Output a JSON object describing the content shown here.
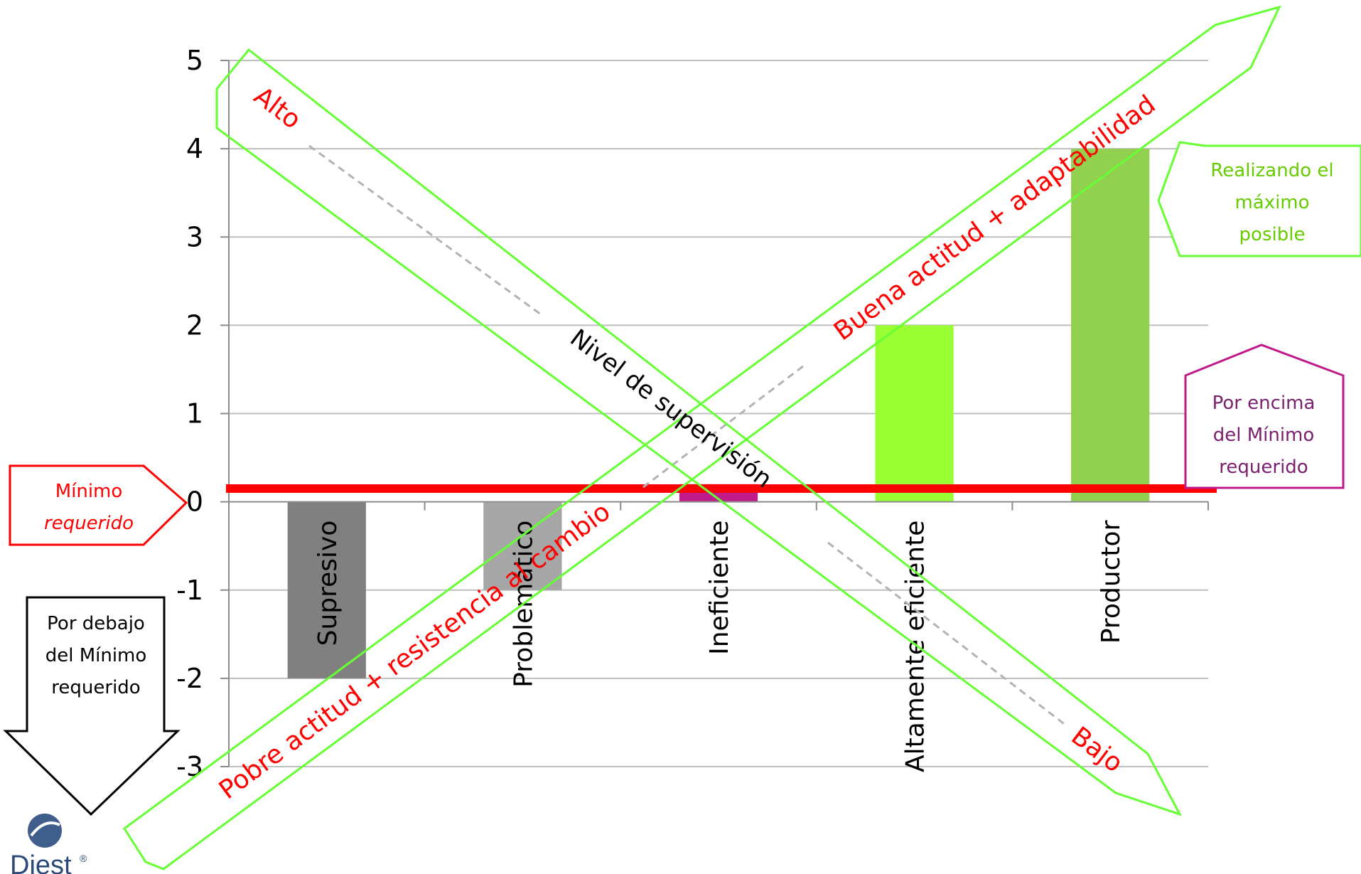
{
  "chart_data": {
    "type": "bar",
    "categories": [
      "Supresivo",
      "Problemático",
      "Ineficiente",
      "Altamente eficiente",
      "Productor"
    ],
    "values": [
      -2,
      -1,
      0.2,
      2,
      4
    ],
    "bar_colors": [
      "#808080",
      "#a6a6a6",
      "#c0198a",
      "#99ff33",
      "#92d050"
    ],
    "ylim": [
      -3,
      5
    ],
    "yticks": [
      5,
      4,
      3,
      2,
      1,
      0,
      -1,
      -2,
      -3
    ],
    "grid": true,
    "minimum_line_value": 0.15,
    "minimum_line_color": "#ff0000"
  },
  "annotations": {
    "rising_arrow_label": "Buena actitud + adaptabilidad",
    "falling_arrow_label": "Pobre actitud + resistencia al cambio",
    "supervision_high": "Alto",
    "supervision_label": "Nivel de supervisión",
    "supervision_low": "Bajo",
    "arrow_outline_color": "#66ff33"
  },
  "callouts": {
    "minimum": {
      "line1": "Mínimo",
      "line2": "requerido",
      "color": "#ff0000"
    },
    "above": {
      "line1": "Por encima",
      "line2": "del Mínimo",
      "line3": "requerido",
      "color": "#7a1f6e",
      "border": "#c0198a"
    },
    "max": {
      "line1": "Realizando el",
      "line2": "máximo",
      "line3": "posible",
      "color": "#66cc00",
      "border": "#66ff33"
    },
    "below": {
      "line1": "Por debajo",
      "line2": "del Mínimo",
      "line3": "requerido",
      "color": "#000000"
    }
  },
  "logo": {
    "text": "Diest",
    "mark": "®"
  }
}
